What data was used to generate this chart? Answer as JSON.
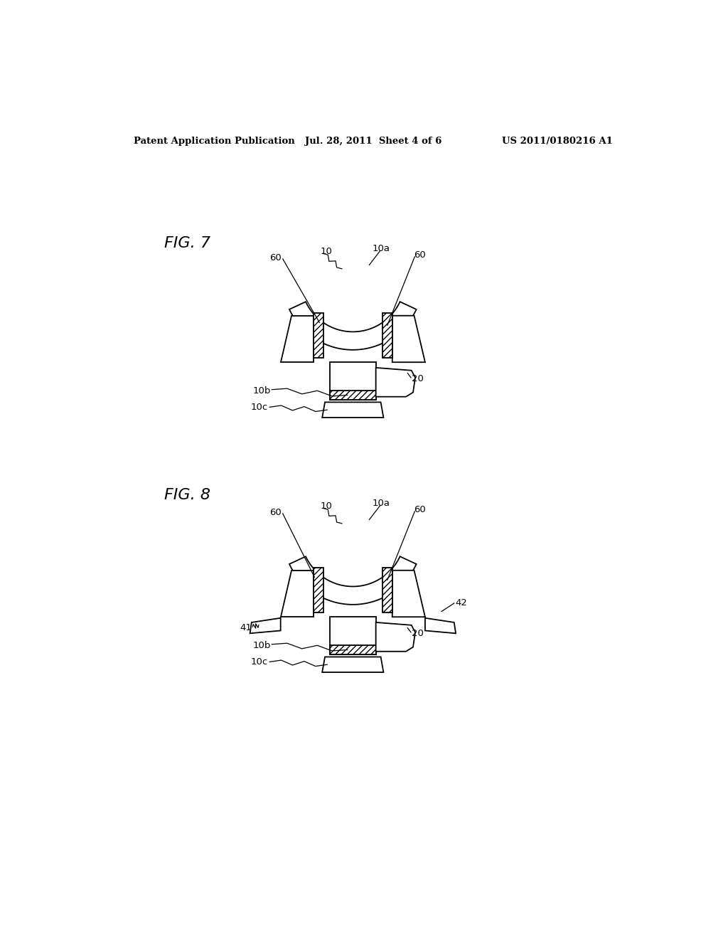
{
  "background_color": "#ffffff",
  "header_left": "Patent Application Publication",
  "header_center": "Jul. 28, 2011  Sheet 4 of 6",
  "header_right": "US 2011/0180216 A1",
  "fig7_label": "FIG. 7",
  "fig8_label": "FIG. 8"
}
